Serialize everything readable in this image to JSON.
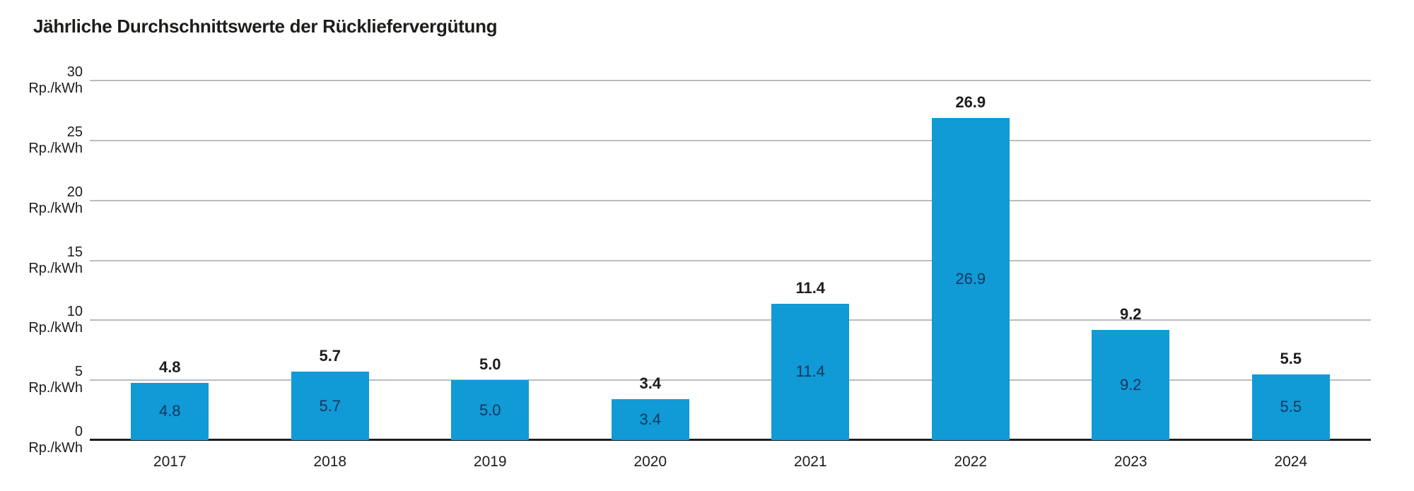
{
  "title": "Jährliche Durchschnittswerte der Rückliefervergütung",
  "chart_data": {
    "type": "bar",
    "title": "Jährliche Durchschnittswerte der Rückliefervergütung",
    "categories": [
      "2017",
      "2018",
      "2019",
      "2020",
      "2021",
      "2022",
      "2023",
      "2024"
    ],
    "values": [
      4.8,
      5.7,
      5.0,
      3.4,
      11.4,
      26.9,
      9.2,
      5.5
    ],
    "value_labels": [
      "4.8",
      "5.7",
      "5.0",
      "3.4",
      "11.4",
      "26.9",
      "9.2",
      "5.5"
    ],
    "unit": "Rp./kWh",
    "y_ticks": [
      0,
      5,
      10,
      15,
      20,
      25,
      30
    ],
    "ylim": [
      0,
      30
    ],
    "grid": true,
    "legend": "none",
    "value_labels_shown": "outside-bold and inside-centered",
    "colors": {
      "bar": "#109ad6",
      "value_label_outside": "#1d1d1b",
      "value_label_inside": "#16365c",
      "gridline": "#bcbcbc",
      "axis": "#1d1d1b",
      "text": "#1d1d1b"
    }
  }
}
